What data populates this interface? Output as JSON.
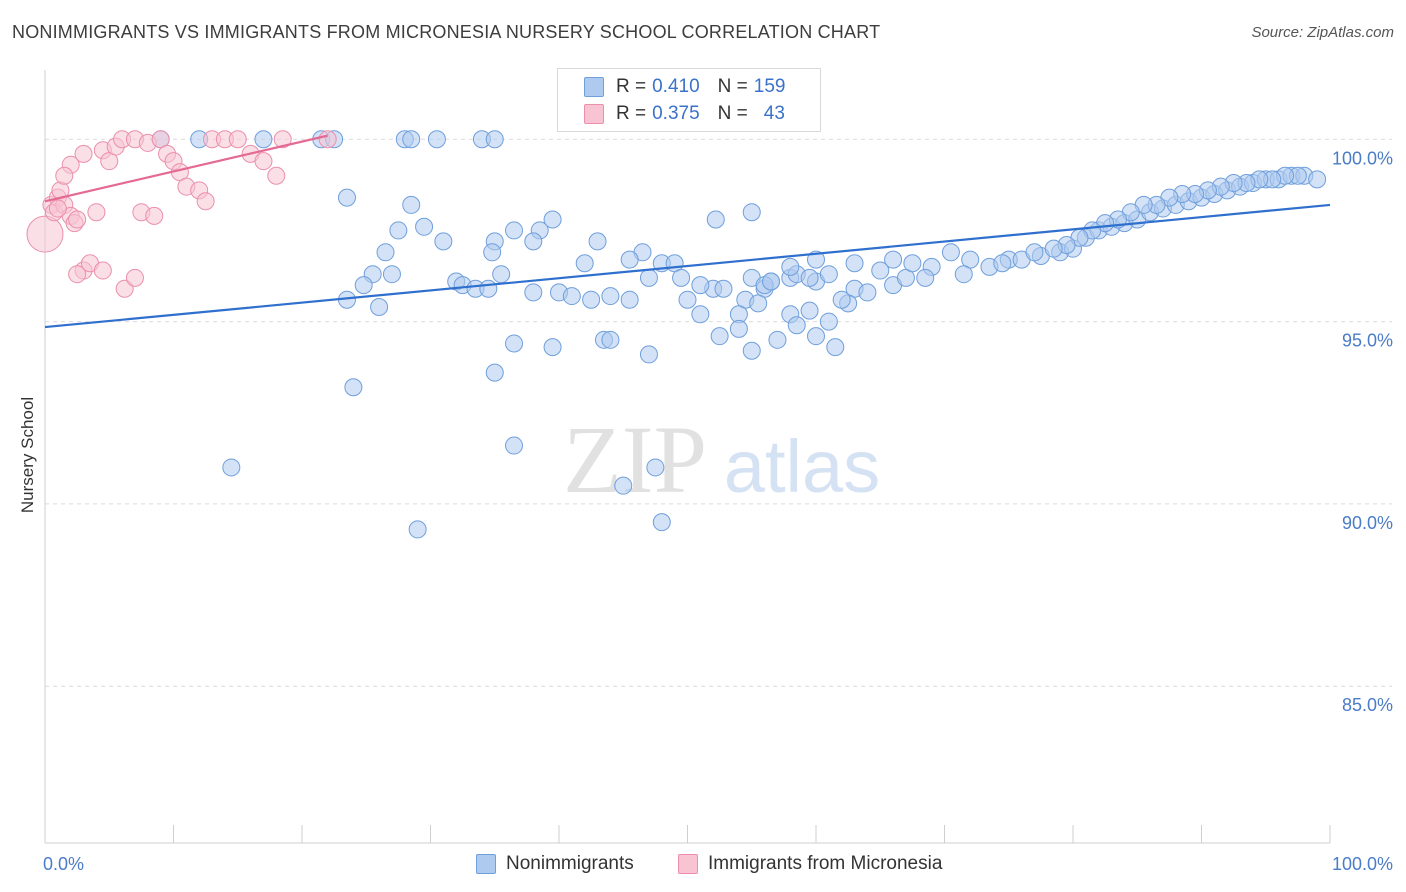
{
  "chart_data": {
    "type": "scatter",
    "title": "NONIMMIGRANTS VS IMMIGRANTS FROM MICRONESIA NURSERY SCHOOL CORRELATION CHART",
    "source": "Source: ZipAtlas.com",
    "ylabel": "Nursery School",
    "xlabel": "",
    "xlim": [
      0,
      100
    ],
    "ylim": [
      80.7,
      101.9
    ],
    "y_ticks": [
      {
        "value": 100,
        "label": "100.0%"
      },
      {
        "value": 95,
        "label": "95.0%"
      },
      {
        "value": 90,
        "label": "90.0%"
      },
      {
        "value": 85,
        "label": "85.0%"
      }
    ],
    "x_tick_labels": {
      "left": "0.0%",
      "right": "100.0%"
    },
    "watermark": {
      "zip": "ZIP",
      "atlas": "atlas"
    },
    "legend": {
      "r_label": "R =",
      "n_label": "N =",
      "entries": [
        {
          "name": "Nonimmigrants",
          "r": "0.410",
          "n": "159",
          "fill": "#aecbef",
          "stroke": "#6f9fdc"
        },
        {
          "name": "Immigrants from Micronesia",
          "r": "0.375",
          "n": "43",
          "fill": "#f8c4d4",
          "stroke": "#eb8fac"
        }
      ]
    },
    "series": [
      {
        "name": "Nonimmigrants",
        "color": "#6f9fdc",
        "fill": "#aecbef",
        "trend": {
          "x": [
            0,
            100
          ],
          "y": [
            94.85,
            98.2
          ],
          "color": "#2f6fce"
        },
        "points": [
          [
            9,
            100
          ],
          [
            12,
            100
          ],
          [
            17,
            100
          ],
          [
            21.5,
            100
          ],
          [
            22.5,
            100
          ],
          [
            28,
            100
          ],
          [
            28.5,
            100
          ],
          [
            34,
            100
          ],
          [
            35,
            100
          ],
          [
            30.5,
            100
          ],
          [
            23.5,
            98.4
          ],
          [
            28.5,
            98.2
          ],
          [
            55,
            98
          ],
          [
            39.5,
            97.8
          ],
          [
            52.2,
            97.8
          ],
          [
            27.5,
            97.5
          ],
          [
            29.5,
            97.6
          ],
          [
            36.5,
            97.5
          ],
          [
            38.5,
            97.5
          ],
          [
            31,
            97.2
          ],
          [
            35,
            97.2
          ],
          [
            38,
            97.2
          ],
          [
            43,
            97.2
          ],
          [
            26.5,
            96.9
          ],
          [
            34.8,
            96.9
          ],
          [
            46.5,
            96.9
          ],
          [
            42,
            96.6
          ],
          [
            35.5,
            96.3
          ],
          [
            25.5,
            96.3
          ],
          [
            27,
            96.3
          ],
          [
            32,
            96.1
          ],
          [
            32.5,
            96.0
          ],
          [
            24.8,
            96.0
          ],
          [
            33.5,
            95.9
          ],
          [
            34.5,
            95.9
          ],
          [
            40,
            95.8
          ],
          [
            41,
            95.7
          ],
          [
            45.5,
            95.6
          ],
          [
            52,
            95.9
          ],
          [
            44,
            95.7
          ],
          [
            52.8,
            95.9
          ],
          [
            56,
            95.9
          ],
          [
            48,
            96.6
          ],
          [
            49,
            96.6
          ],
          [
            45.5,
            96.7
          ],
          [
            47,
            96.2
          ],
          [
            49.5,
            96.2
          ],
          [
            51,
            96.0
          ],
          [
            55,
            96.2
          ],
          [
            56.5,
            96.1
          ],
          [
            58,
            96.2
          ],
          [
            60,
            96.1
          ],
          [
            61,
            96.3
          ],
          [
            63,
            95.9
          ],
          [
            66,
            96.0
          ],
          [
            67,
            96.2
          ],
          [
            58.5,
            96.3
          ],
          [
            59.5,
            96.2
          ],
          [
            63,
            96.6
          ],
          [
            65,
            96.4
          ],
          [
            66,
            96.7
          ],
          [
            60,
            96.7
          ],
          [
            58,
            96.5
          ],
          [
            56,
            96.0
          ],
          [
            54.5,
            95.6
          ],
          [
            56.5,
            96.1
          ],
          [
            23.5,
            95.6
          ],
          [
            26,
            95.4
          ],
          [
            38,
            95.8
          ],
          [
            42.5,
            95.6
          ],
          [
            50,
            95.6
          ],
          [
            51,
            95.2
          ],
          [
            55.5,
            95.5
          ],
          [
            54,
            95.2
          ],
          [
            58,
            95.2
          ],
          [
            59.5,
            95.3
          ],
          [
            61,
            95.0
          ],
          [
            62.5,
            95.5
          ],
          [
            64,
            95.8
          ],
          [
            62,
            95.6
          ],
          [
            36.5,
            94.4
          ],
          [
            39.5,
            94.3
          ],
          [
            43.5,
            94.5
          ],
          [
            44,
            94.5
          ],
          [
            47,
            94.1
          ],
          [
            52.5,
            94.6
          ],
          [
            54,
            94.8
          ],
          [
            55,
            94.2
          ],
          [
            57,
            94.5
          ],
          [
            58.5,
            94.9
          ],
          [
            60,
            94.6
          ],
          [
            61.5,
            94.3
          ],
          [
            67.5,
            96.6
          ],
          [
            69,
            96.5
          ],
          [
            70.5,
            96.9
          ],
          [
            72,
            96.7
          ],
          [
            73.5,
            96.5
          ],
          [
            75,
            96.7
          ],
          [
            76,
            96.7
          ],
          [
            77.5,
            96.8
          ],
          [
            79,
            96.9
          ],
          [
            80,
            97.0
          ],
          [
            81,
            97.3
          ],
          [
            82,
            97.5
          ],
          [
            83,
            97.6
          ],
          [
            84,
            97.7
          ],
          [
            85,
            97.8
          ],
          [
            86,
            98.0
          ],
          [
            87,
            98.1
          ],
          [
            88,
            98.2
          ],
          [
            89,
            98.3
          ],
          [
            90,
            98.4
          ],
          [
            91,
            98.5
          ],
          [
            92,
            98.6
          ],
          [
            93,
            98.7
          ],
          [
            94,
            98.8
          ],
          [
            95,
            98.9
          ],
          [
            96,
            98.9
          ],
          [
            97,
            99.0
          ],
          [
            98,
            99.0
          ],
          [
            99,
            98.9
          ],
          [
            97.5,
            99.0
          ],
          [
            96.5,
            99.0
          ],
          [
            95.5,
            98.9
          ],
          [
            94.5,
            98.9
          ],
          [
            93.5,
            98.8
          ],
          [
            92.5,
            98.8
          ],
          [
            91.5,
            98.7
          ],
          [
            90.5,
            98.6
          ],
          [
            89.5,
            98.5
          ],
          [
            88.5,
            98.5
          ],
          [
            87.5,
            98.4
          ],
          [
            86.5,
            98.2
          ],
          [
            85.5,
            98.2
          ],
          [
            84.5,
            98.0
          ],
          [
            83.5,
            97.8
          ],
          [
            82.5,
            97.7
          ],
          [
            81.5,
            97.5
          ],
          [
            80.5,
            97.3
          ],
          [
            79.5,
            97.1
          ],
          [
            78.5,
            97.0
          ],
          [
            77,
            96.9
          ],
          [
            74.5,
            96.6
          ],
          [
            71.5,
            96.3
          ],
          [
            68.5,
            96.2
          ],
          [
            14.5,
            91
          ],
          [
            24,
            93.2
          ],
          [
            29,
            89.3
          ],
          [
            35,
            93.6
          ],
          [
            36.5,
            91.6
          ],
          [
            45,
            90.5
          ],
          [
            47.5,
            91
          ],
          [
            48,
            89.5
          ]
        ]
      },
      {
        "name": "Immigrants from Micronesia",
        "color": "#eb8fac",
        "fill": "#f8c4d4",
        "trend": {
          "x": [
            0,
            22
          ],
          "y": [
            98.3,
            100.1
          ],
          "color": "#e46a94"
        },
        "points": [
          [
            0,
            97.4
          ],
          [
            0.5,
            98.2
          ],
          [
            0.7,
            98.0
          ],
          [
            1,
            98.4
          ],
          [
            1.2,
            98.6
          ],
          [
            1.5,
            98.2
          ],
          [
            2,
            97.9
          ],
          [
            2.3,
            97.7
          ],
          [
            2.5,
            97.8
          ],
          [
            3,
            96.4
          ],
          [
            3.5,
            96.6
          ],
          [
            4,
            98.0
          ],
          [
            4.5,
            99.7
          ],
          [
            5,
            99.4
          ],
          [
            5.5,
            99.8
          ],
          [
            6,
            100
          ],
          [
            7,
            100
          ],
          [
            8,
            99.9
          ],
          [
            9,
            100
          ],
          [
            9.5,
            99.6
          ],
          [
            10,
            99.4
          ],
          [
            10.5,
            99.1
          ],
          [
            11,
            98.7
          ],
          [
            12,
            98.6
          ],
          [
            12.5,
            98.3
          ],
          [
            13,
            100
          ],
          [
            14,
            100
          ],
          [
            15,
            100
          ],
          [
            16,
            99.6
          ],
          [
            17,
            99.4
          ],
          [
            18,
            99.0
          ],
          [
            2,
            99.3
          ],
          [
            3,
            99.6
          ],
          [
            2.5,
            96.3
          ],
          [
            4.5,
            96.4
          ],
          [
            6.2,
            95.9
          ],
          [
            7,
            96.2
          ],
          [
            7.5,
            98.0
          ],
          [
            8.5,
            97.9
          ],
          [
            1.5,
            99.0
          ],
          [
            1,
            98.1
          ],
          [
            18.5,
            100
          ],
          [
            22,
            100
          ]
        ]
      }
    ]
  }
}
